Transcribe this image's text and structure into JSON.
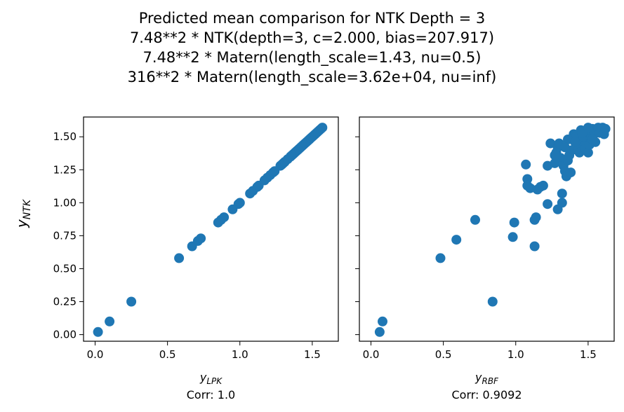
{
  "title_lines": [
    "Predicted mean comparison for NTK Depth = 3",
    "7.48**2 * NTK(depth=3, c=2.000, bias=207.917)",
    "7.48**2 * Matern(length_scale=1.43, nu=0.5)",
    "316**2 * Matern(length_scale=3.62e+04, nu=inf)"
  ],
  "ylabel": {
    "main": "y",
    "sub": "NTK"
  },
  "point_color": "#1f77b4",
  "chart_data": [
    {
      "type": "scatter",
      "xlabel": {
        "main": "y",
        "sub": "LPK"
      },
      "annotation": "Corr: 1.0",
      "xlim": [
        -0.08,
        1.68
      ],
      "ylim": [
        -0.05,
        1.65
      ],
      "xticks": [
        "0.0",
        "0.5",
        "1.0",
        "1.5"
      ],
      "yticks": [
        "0.00",
        "0.25",
        "0.50",
        "0.75",
        "1.00",
        "1.25",
        "1.50"
      ],
      "points": [
        [
          0.02,
          0.02
        ],
        [
          0.1,
          0.1
        ],
        [
          0.25,
          0.25
        ],
        [
          0.58,
          0.58
        ],
        [
          0.67,
          0.67
        ],
        [
          0.71,
          0.71
        ],
        [
          0.73,
          0.73
        ],
        [
          0.85,
          0.85
        ],
        [
          0.87,
          0.87
        ],
        [
          0.89,
          0.89
        ],
        [
          0.95,
          0.95
        ],
        [
          0.99,
          0.99
        ],
        [
          1.0,
          1.0
        ],
        [
          1.07,
          1.07
        ],
        [
          1.09,
          1.09
        ],
        [
          1.12,
          1.12
        ],
        [
          1.13,
          1.13
        ],
        [
          1.17,
          1.17
        ],
        [
          1.19,
          1.19
        ],
        [
          1.21,
          1.21
        ],
        [
          1.23,
          1.23
        ],
        [
          1.24,
          1.24
        ],
        [
          1.28,
          1.28
        ],
        [
          1.29,
          1.29
        ],
        [
          1.3,
          1.3
        ],
        [
          1.31,
          1.31
        ],
        [
          1.33,
          1.33
        ],
        [
          1.35,
          1.35
        ],
        [
          1.36,
          1.36
        ],
        [
          1.37,
          1.37
        ],
        [
          1.38,
          1.38
        ],
        [
          1.39,
          1.39
        ],
        [
          1.4,
          1.4
        ],
        [
          1.41,
          1.41
        ],
        [
          1.42,
          1.42
        ],
        [
          1.43,
          1.43
        ],
        [
          1.44,
          1.44
        ],
        [
          1.45,
          1.45
        ],
        [
          1.46,
          1.46
        ],
        [
          1.47,
          1.47
        ],
        [
          1.48,
          1.48
        ],
        [
          1.49,
          1.49
        ],
        [
          1.5,
          1.5
        ],
        [
          1.51,
          1.51
        ],
        [
          1.52,
          1.52
        ],
        [
          1.53,
          1.53
        ],
        [
          1.54,
          1.54
        ],
        [
          1.55,
          1.55
        ],
        [
          1.56,
          1.56
        ],
        [
          1.57,
          1.57
        ]
      ]
    },
    {
      "type": "scatter",
      "xlabel": {
        "main": "y",
        "sub": "RBF"
      },
      "annotation": "Corr: 0.9092",
      "xlim": [
        -0.08,
        1.68
      ],
      "ylim": [
        -0.05,
        1.65
      ],
      "xticks": [
        "0.0",
        "0.5",
        "1.0",
        "1.5"
      ],
      "yticks": [
        "0.00",
        "0.25",
        "0.50",
        "0.75",
        "1.00",
        "1.25",
        "1.50"
      ],
      "points": [
        [
          0.06,
          0.02
        ],
        [
          0.08,
          0.1
        ],
        [
          0.84,
          0.25
        ],
        [
          0.48,
          0.58
        ],
        [
          0.59,
          0.72
        ],
        [
          0.72,
          0.87
        ],
        [
          0.98,
          0.74
        ],
        [
          0.99,
          0.85
        ],
        [
          1.13,
          0.67
        ],
        [
          1.13,
          0.87
        ],
        [
          1.14,
          0.89
        ],
        [
          1.22,
          0.99
        ],
        [
          1.29,
          0.95
        ],
        [
          1.32,
          1.0
        ],
        [
          1.32,
          1.07
        ],
        [
          1.07,
          1.29
        ],
        [
          1.08,
          1.18
        ],
        [
          1.08,
          1.13
        ],
        [
          1.1,
          1.11
        ],
        [
          1.15,
          1.1
        ],
        [
          1.17,
          1.12
        ],
        [
          1.19,
          1.13
        ],
        [
          1.22,
          1.28
        ],
        [
          1.24,
          1.45
        ],
        [
          1.27,
          1.3
        ],
        [
          1.28,
          1.38
        ],
        [
          1.29,
          1.42
        ],
        [
          1.3,
          1.45
        ],
        [
          1.31,
          1.34
        ],
        [
          1.33,
          1.28
        ],
        [
          1.34,
          1.24
        ],
        [
          1.35,
          1.2
        ],
        [
          1.36,
          1.32
        ],
        [
          1.37,
          1.36
        ],
        [
          1.38,
          1.23
        ],
        [
          1.39,
          1.4
        ],
        [
          1.39,
          1.48
        ],
        [
          1.4,
          1.52
        ],
        [
          1.42,
          1.51
        ],
        [
          1.43,
          1.42
        ],
        [
          1.44,
          1.38
        ],
        [
          1.45,
          1.55
        ],
        [
          1.46,
          1.47
        ],
        [
          1.47,
          1.5
        ],
        [
          1.48,
          1.41
        ],
        [
          1.49,
          1.54
        ],
        [
          1.5,
          1.38
        ],
        [
          1.51,
          1.44
        ],
        [
          1.52,
          1.49
        ],
        [
          1.53,
          1.56
        ],
        [
          1.54,
          1.52
        ],
        [
          1.55,
          1.46
        ],
        [
          1.56,
          1.55
        ],
        [
          1.57,
          1.57
        ],
        [
          1.58,
          1.53
        ],
        [
          1.59,
          1.56
        ],
        [
          1.6,
          1.57
        ],
        [
          1.61,
          1.52
        ],
        [
          1.62,
          1.56
        ],
        [
          1.36,
          1.48
        ],
        [
          1.41,
          1.46
        ],
        [
          1.46,
          1.53
        ],
        [
          1.5,
          1.57
        ],
        [
          1.53,
          1.48
        ],
        [
          1.34,
          1.42
        ],
        [
          1.27,
          1.36
        ]
      ]
    }
  ]
}
